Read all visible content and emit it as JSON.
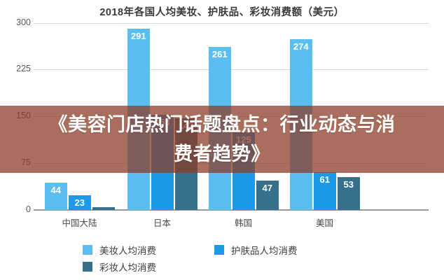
{
  "banner": {
    "line1": "《美容门店热门话题盘点：行业动态与消",
    "line2": "费者趋势》",
    "bg_color": "rgba(140,60,38,0.74)",
    "text_color": "#ffffff"
  },
  "chart_data": {
    "type": "bar",
    "title": "2018年各国人均美妆、护肤品、彩妆消费额（美元）",
    "categories": [
      "中国大陆",
      "日本",
      "韩国",
      "美国"
    ],
    "series": [
      {
        "name": "美妆人均消费",
        "color": "#5ABEF0",
        "values": [
          44,
          291,
          261,
          274
        ]
      },
      {
        "name": "护肤品人均消费",
        "color": "#1B9AE8",
        "values": [
          23,
          153,
          125,
          61
        ]
      },
      {
        "name": "彩妆人均消费",
        "color": "#37708C",
        "values": [
          5,
          147,
          47,
          53
        ]
      }
    ],
    "ylim": [
      0,
      300
    ],
    "yticks": [
      0,
      75,
      150,
      225,
      300
    ],
    "grid": true,
    "value_labels": true,
    "legend_position": "bottom",
    "visible_value_labels": [
      44,
      23,
      291,
      261,
      47,
      274,
      61,
      53
    ],
    "labels_hidden_behind_banner": [
      153,
      147,
      125
    ]
  }
}
